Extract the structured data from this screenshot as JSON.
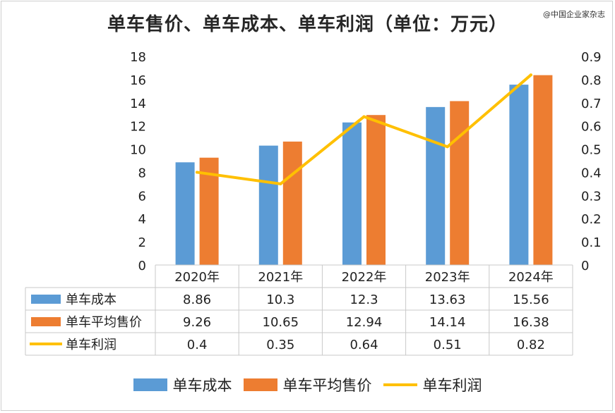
{
  "title": "单车售价、单车成本、单车利润（单位：万元）",
  "watermark": "@中国企业家杂志",
  "chart_data": {
    "type": "bar",
    "categories": [
      "2020年",
      "2021年",
      "2022年",
      "2023年",
      "2024年"
    ],
    "series": [
      {
        "name": "单车成本",
        "type": "bar",
        "axis": "left",
        "color": "#5B9BD5",
        "values": [
          8.86,
          10.3,
          12.3,
          13.63,
          15.56
        ],
        "labels": [
          "8.86",
          "10.3",
          "12.3",
          "13.63",
          "15.56"
        ]
      },
      {
        "name": "单车平均售价",
        "type": "bar",
        "axis": "left",
        "color": "#ED7D31",
        "values": [
          9.26,
          10.65,
          12.94,
          14.14,
          16.38
        ],
        "labels": [
          "9.26",
          "10.65",
          "12.94",
          "14.14",
          "16.38"
        ]
      },
      {
        "name": "单车利润",
        "type": "line",
        "axis": "right",
        "color": "#FFC000",
        "values": [
          0.4,
          0.35,
          0.64,
          0.51,
          0.82
        ],
        "labels": [
          "0.4",
          "0.35",
          "0.64",
          "0.51",
          "0.82"
        ]
      }
    ],
    "y_left": {
      "min": 0,
      "max": 18,
      "step": 2,
      "ticks": [
        "0",
        "2",
        "4",
        "6",
        "8",
        "10",
        "12",
        "14",
        "16",
        "18"
      ]
    },
    "y_right": {
      "min": 0,
      "max": 0.9,
      "step": 0.1,
      "ticks": [
        "0",
        "0.1",
        "0.2",
        "0.3",
        "0.4",
        "0.5",
        "0.6",
        "0.7",
        "0.8",
        "0.9"
      ]
    },
    "grid": false,
    "data_table": true,
    "legend_position": "bottom"
  }
}
